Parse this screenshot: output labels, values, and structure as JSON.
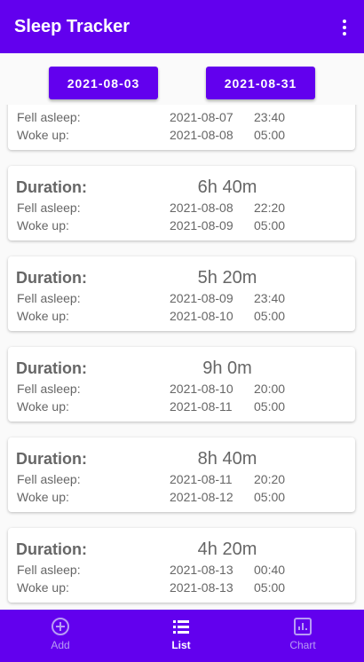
{
  "app_bar": {
    "title": "Sleep Tracker"
  },
  "date_range": {
    "start": "2021-08-03",
    "end": "2021-08-31"
  },
  "labels": {
    "duration": "Duration:",
    "fell_asleep": "Fell asleep:",
    "woke_up": "Woke up:"
  },
  "records": [
    {
      "fell_date": "2021-08-07",
      "fell_time": "23:40",
      "woke_date": "2021-08-08",
      "woke_time": "05:00"
    },
    {
      "duration": "6h 40m",
      "fell_date": "2021-08-08",
      "fell_time": "22:20",
      "woke_date": "2021-08-09",
      "woke_time": "05:00"
    },
    {
      "duration": "5h 20m",
      "fell_date": "2021-08-09",
      "fell_time": "23:40",
      "woke_date": "2021-08-10",
      "woke_time": "05:00"
    },
    {
      "duration": "9h 0m",
      "fell_date": "2021-08-10",
      "fell_time": "20:00",
      "woke_date": "2021-08-11",
      "woke_time": "05:00"
    },
    {
      "duration": "8h 40m",
      "fell_date": "2021-08-11",
      "fell_time": "20:20",
      "woke_date": "2021-08-12",
      "woke_time": "05:00"
    },
    {
      "duration": "4h 20m",
      "fell_date": "2021-08-13",
      "fell_time": "00:40",
      "woke_date": "2021-08-13",
      "woke_time": "05:00"
    }
  ],
  "bottom_nav": {
    "items": [
      "Add",
      "List",
      "Chart"
    ]
  }
}
